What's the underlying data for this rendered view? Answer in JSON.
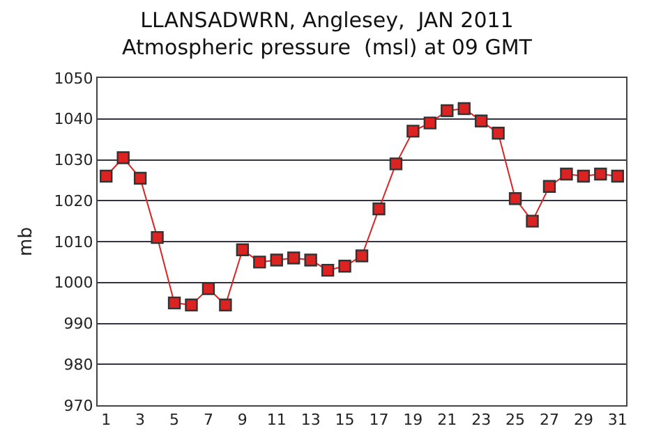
{
  "chart_data": {
    "type": "line",
    "title": "LLANSADWRN, Anglesey,  JAN 2011",
    "subtitle": "Atmospheric pressure  (msl) at 09 GMT",
    "ylabel": "mb",
    "x": [
      1,
      2,
      3,
      4,
      5,
      6,
      7,
      8,
      9,
      10,
      11,
      12,
      13,
      14,
      15,
      16,
      17,
      18,
      19,
      20,
      21,
      22,
      23,
      24,
      25,
      26,
      27,
      28,
      29,
      30,
      31
    ],
    "series": [
      {
        "color": "#dd2222",
        "values": [
          1026,
          1030.5,
          1025.5,
          1011,
          995,
          994.5,
          998.5,
          994.5,
          1008,
          1005,
          1005.5,
          1006,
          1005.5,
          1003,
          1004,
          1006.5,
          1018,
          1029,
          1037,
          1039,
          1042,
          1042.5,
          1039.5,
          1036.5,
          1020.5,
          1015,
          1023.5,
          1026.5,
          1026,
          1026.5,
          1026
        ]
      }
    ],
    "xlim": [
      0.5,
      31.5
    ],
    "xticks": [
      1,
      3,
      5,
      7,
      9,
      11,
      13,
      15,
      17,
      19,
      21,
      23,
      25,
      27,
      29,
      31
    ],
    "ylim": [
      970,
      1050
    ],
    "yticks": [
      970,
      980,
      990,
      1000,
      1010,
      1020,
      1030,
      1040,
      1050
    ],
    "grid": "y",
    "marker": "square",
    "line_style": "solid"
  }
}
